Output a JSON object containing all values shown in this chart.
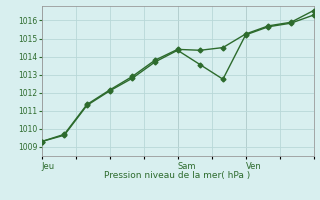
{
  "title": "",
  "xlabel": "Pression niveau de la mer( hPa )",
  "bg_color": "#d8efef",
  "grid_color": "#b8d8d8",
  "line_color": "#2d6b2d",
  "spine_color": "#999999",
  "ylim": [
    1008.5,
    1016.8
  ],
  "yticks": [
    1009,
    1010,
    1011,
    1012,
    1013,
    1014,
    1015,
    1016
  ],
  "xlim": [
    0,
    24
  ],
  "xtick_positions": [
    0,
    3,
    6,
    9,
    12,
    15,
    18,
    21,
    24
  ],
  "day_labels": [
    "Jeu",
    "Sam",
    "Ven"
  ],
  "day_positions": [
    0,
    12,
    18
  ],
  "series1_x": [
    0,
    2,
    4,
    6,
    8,
    10,
    12,
    14,
    16,
    18,
    20,
    22,
    24
  ],
  "series1_y": [
    1009.3,
    1009.65,
    1011.3,
    1012.1,
    1012.8,
    1013.7,
    1014.35,
    1013.55,
    1012.75,
    1015.2,
    1015.65,
    1015.85,
    1016.3
  ],
  "series2_x": [
    0,
    2,
    4,
    6,
    8,
    10,
    12,
    14,
    16,
    18,
    20,
    22,
    24
  ],
  "series2_y": [
    1009.3,
    1009.7,
    1011.35,
    1012.15,
    1012.9,
    1013.8,
    1014.4,
    1014.35,
    1014.5,
    1015.25,
    1015.7,
    1015.9,
    1016.55
  ],
  "marker_size": 2.5,
  "linewidth": 1.0,
  "tick_fontsize": 5.5,
  "xlabel_fontsize": 6.5,
  "label_fontsize": 6.0
}
